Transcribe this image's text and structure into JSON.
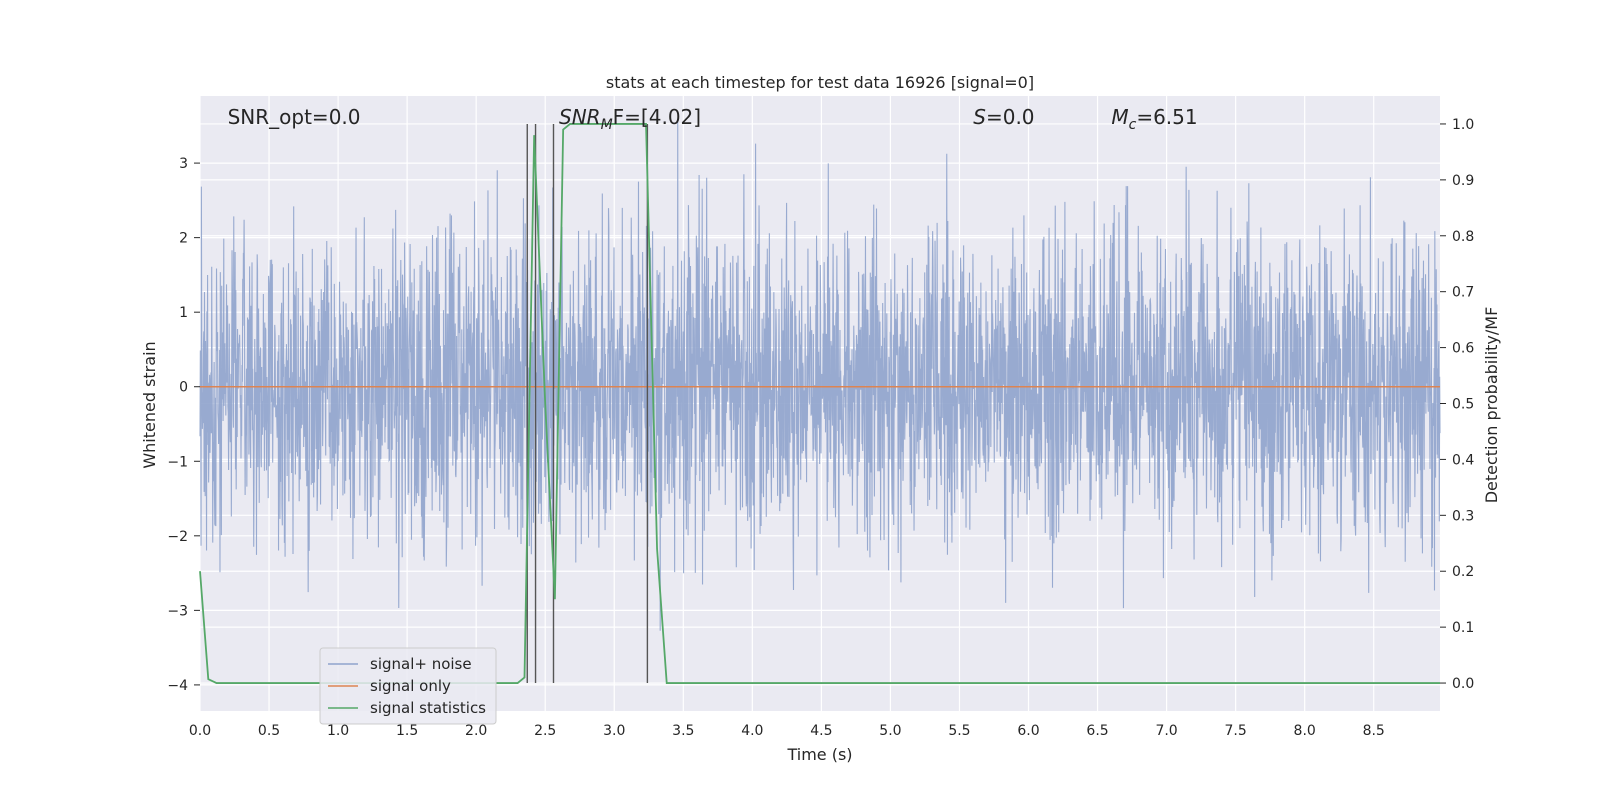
{
  "chart_data": {
    "type": "line",
    "title": "stats at each timestep for test data 16926 [signal=0]",
    "xlabel": "Time (s)",
    "ylabel_left": "Whitened strain",
    "ylabel_right": "Detection probability/MF",
    "xlim": [
      0,
      8.98
    ],
    "ylim_left": [
      -4.35,
      3.9
    ],
    "ylim_right": [
      -0.05,
      1.05
    ],
    "x_ticks": [
      0.0,
      0.5,
      1.0,
      1.5,
      2.0,
      2.5,
      3.0,
      3.5,
      4.0,
      4.5,
      5.0,
      5.5,
      6.0,
      6.5,
      7.0,
      7.5,
      8.0,
      8.5
    ],
    "x_tick_labels": [
      "0.0",
      "0.5",
      "1.0",
      "1.5",
      "2.0",
      "2.5",
      "3.0",
      "3.5",
      "4.0",
      "4.5",
      "5.0",
      "5.5",
      "6.0",
      "6.5",
      "7.0",
      "7.5",
      "8.0",
      "8.5"
    ],
    "y_left_ticks": [
      3,
      2,
      1,
      0,
      -1,
      -2,
      -3,
      -4
    ],
    "y_left_tick_labels": [
      "3",
      "2",
      "1",
      "0",
      "−1",
      "−2",
      "−3",
      "−4"
    ],
    "y_right_ticks": [
      1.0,
      0.9,
      0.8,
      0.7,
      0.6,
      0.5,
      0.4,
      0.3,
      0.2,
      0.1,
      0.0
    ],
    "y_right_tick_labels": [
      "1.0",
      "0.9",
      "0.8",
      "0.7",
      "0.6",
      "0.5",
      "0.4",
      "0.3",
      "0.2",
      "0.1",
      "0.0"
    ],
    "grid": true,
    "legend_position": "lower-left",
    "annotations": [
      {
        "x": 0.2,
        "text": "SNR_opt=0.0",
        "italic_prefix": "",
        "sub": "",
        "rest": ""
      },
      {
        "x": 2.6,
        "text": "",
        "italic_prefix": "SNR",
        "sub": "M",
        "rest": "F=[4.02]"
      },
      {
        "x": 5.6,
        "text": "",
        "italic_prefix": "S",
        "sub": "",
        "rest": "=0.0"
      },
      {
        "x": 6.6,
        "text": "",
        "italic_prefix": "M",
        "sub": "c",
        "rest": "=6.51"
      }
    ],
    "vertical_lines_x": [
      2.37,
      2.43,
      2.56,
      3.24
    ],
    "series": [
      {
        "name": "signal+ noise",
        "axis": "left",
        "color": "#8fa3cc",
        "style": "gaussian noise, approx. std 1.0, sampled densely over [0, 8.98] s",
        "x_range": [
          0,
          8.98
        ],
        "std": 1.0,
        "min": -3.35,
        "max": 3.55
      },
      {
        "name": "signal only",
        "axis": "left",
        "color": "#dd8452",
        "x": [
          0,
          8.98
        ],
        "values": [
          0,
          0
        ]
      },
      {
        "name": "signal statistics",
        "axis": "right",
        "color": "#55a868",
        "x": [
          0.0,
          0.06,
          0.12,
          2.3,
          2.35,
          2.42,
          2.5,
          2.57,
          2.63,
          2.68,
          3.23,
          3.31,
          3.38,
          8.98
        ],
        "values": [
          0.2,
          0.007,
          0.0,
          0.0,
          0.01,
          0.98,
          0.5,
          0.15,
          0.99,
          1.0,
          1.0,
          0.24,
          0.0,
          0.0
        ]
      }
    ]
  }
}
